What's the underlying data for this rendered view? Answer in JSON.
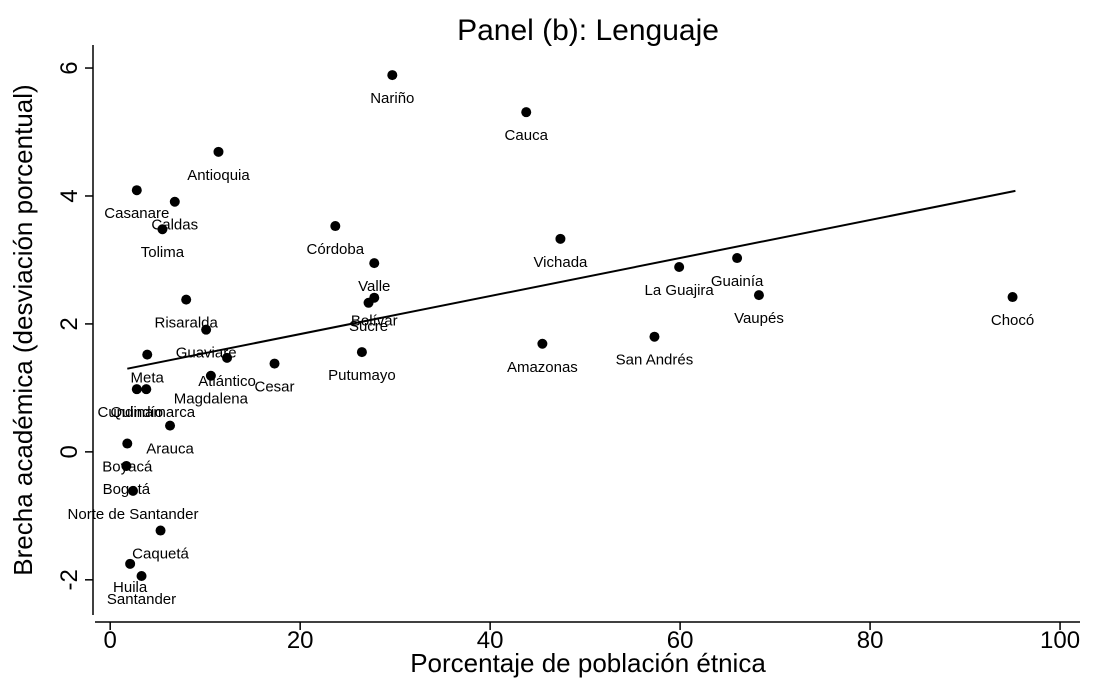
{
  "chart_data": {
    "type": "scatter",
    "title": "Panel (b): Lenguaje",
    "xlabel": "Porcentaje de población étnica",
    "ylabel": "Brecha académica (desviación porcentual)",
    "color": "#000000",
    "points": {
      "labels": [
        "Nariño",
        "Cauca",
        "Antioquia",
        "Casanare",
        "Caldas",
        "Tolima",
        "Córdoba",
        "Valle",
        "Vichada",
        "La Guajira",
        "Guainía",
        "Vaupés",
        "Chocó",
        "Risaralda",
        "Bolívar",
        "Sucre",
        "Guaviare",
        "Putumayo",
        "Amazonas",
        "San Andrés",
        "Cesar",
        "Atlántico",
        "Magdalena",
        "Meta",
        "Cundinamarca",
        "Quindío",
        "Arauca",
        "Boyacá",
        "Bogotá",
        "Norte de Santander",
        "Caquetá",
        "Huila",
        "Santander"
      ],
      "x": [
        29.7,
        43.8,
        11.4,
        2.8,
        6.8,
        5.5,
        23.7,
        27.8,
        47.4,
        59.9,
        66.0,
        68.3,
        95.0,
        8.0,
        27.8,
        27.2,
        10.1,
        26.5,
        45.5,
        57.3,
        17.3,
        12.3,
        10.6,
        3.9,
        3.8,
        2.8,
        6.3,
        1.8,
        1.7,
        2.4,
        5.3,
        2.1,
        3.3
      ],
      "values": [
        5.89,
        5.31,
        4.69,
        4.09,
        3.91,
        3.48,
        3.53,
        2.95,
        3.33,
        2.89,
        3.03,
        2.45,
        2.42,
        2.38,
        2.41,
        2.33,
        1.91,
        1.56,
        1.69,
        1.8,
        1.38,
        1.47,
        1.19,
        1.52,
        0.98,
        0.98,
        0.41,
        0.13,
        -0.22,
        -0.61,
        -1.23,
        -1.75,
        -1.94
      ]
    },
    "fit_line": {
      "x": [
        1.8,
        95.3
      ],
      "values": [
        1.3,
        4.08
      ]
    },
    "xlim": [
      -1.6,
      102.1
    ],
    "ylim": [
      -2.55,
      6.36
    ],
    "xticks": [
      0,
      20,
      40,
      60,
      80,
      100
    ],
    "yticks": [
      -2,
      0,
      2,
      4,
      6
    ]
  }
}
